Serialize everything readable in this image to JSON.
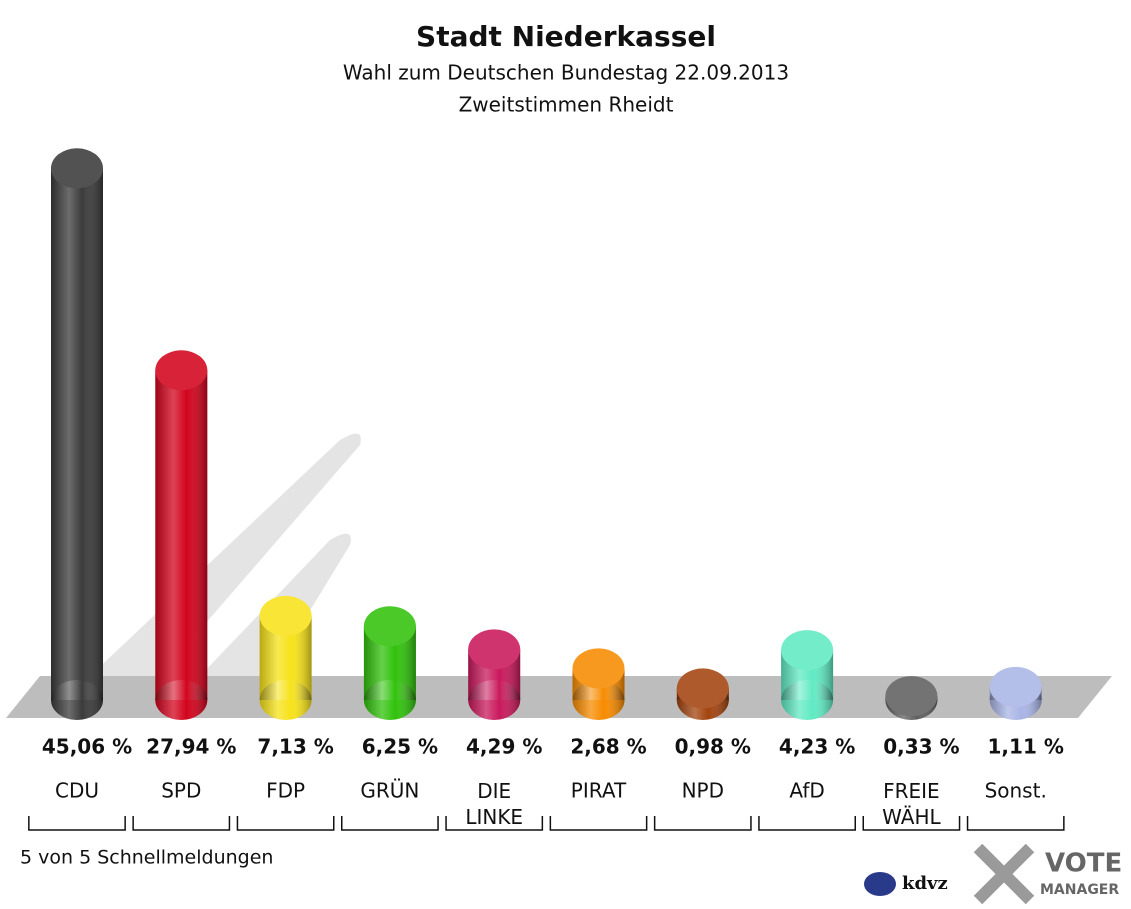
{
  "chart_data": {
    "type": "bar",
    "title": "Stadt Niederkassel",
    "subtitle": "Wahl zum Deutschen Bundestag 22.09.2013",
    "subtitle2": "Zweitstimmen Rheidt",
    "categories": [
      "CDU",
      "SPD",
      "FDP",
      "GRÜN",
      "DIE LINKE",
      "PIRAT",
      "NPD",
      "AfD",
      "FREIE WÄHL",
      "Sonst."
    ],
    "values": [
      45.06,
      27.94,
      7.13,
      6.25,
      4.29,
      2.68,
      0.98,
      4.23,
      0.33,
      1.11
    ],
    "value_labels": [
      "45,06 %",
      "27,94 %",
      "7,13 %",
      "6,25 %",
      "4,29 %",
      "2,68 %",
      "0,98 %",
      "4,23 %",
      "0,33 %",
      "1,11 %"
    ],
    "colors": [
      "#3b3b3b",
      "#d2041d",
      "#f7e21a",
      "#31c20c",
      "#c9195c",
      "#f78b00",
      "#a3440f",
      "#60eac3",
      "#606060",
      "#a9b5e6"
    ],
    "footer": "5 von 5 Schnellmeldungen",
    "logos": [
      "kdvz",
      "VOTE",
      "MANAGER"
    ]
  }
}
